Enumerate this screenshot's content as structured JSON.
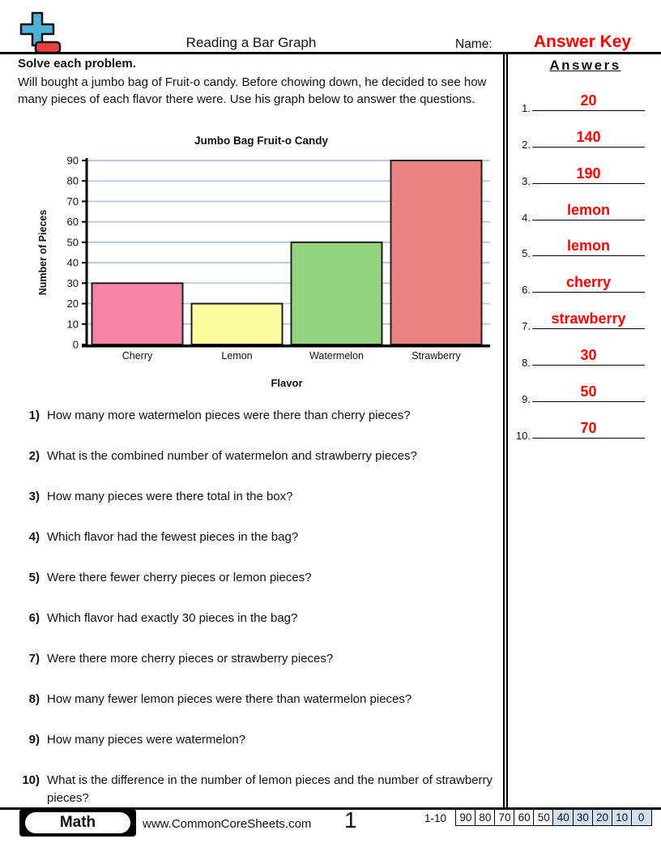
{
  "header": {
    "title": "Reading a Bar Graph",
    "name_label": "Name:",
    "name_value": "Answer Key"
  },
  "instructions": {
    "heading": "Solve each problem.",
    "body": "Will bought a jumbo bag of Fruit-o candy. Before chowing down, he decided to see how many pieces of each flavor there were. Use his graph below to answer the questions."
  },
  "chart_data": {
    "type": "bar",
    "title": "Jumbo Bag Fruit-o Candy",
    "categories": [
      "Cherry",
      "Lemon",
      "Watermelon",
      "Strawberry"
    ],
    "values": [
      30,
      20,
      50,
      90
    ],
    "bar_colors": [
      "#f883a4",
      "#fbfb9d",
      "#92d37e",
      "#ec8383"
    ],
    "xlabel": "Flavor",
    "ylabel": "Number of Pieces",
    "ylim": [
      0,
      90
    ],
    "ytick_step": 10,
    "grid": true,
    "gridline_color": "#a9c6e2",
    "legend": "none"
  },
  "questions": [
    {
      "num": "1)",
      "text": "How many more watermelon pieces were there than cherry pieces?"
    },
    {
      "num": "2)",
      "text": "What is the combined number of watermelon and strawberry pieces?"
    },
    {
      "num": "3)",
      "text": "How many pieces were there total in the box?"
    },
    {
      "num": "4)",
      "text": "Which flavor had the fewest pieces in the bag?"
    },
    {
      "num": "5)",
      "text": "Were there fewer cherry pieces or lemon pieces?"
    },
    {
      "num": "6)",
      "text": "Which flavor had exactly 30 pieces in the bag?"
    },
    {
      "num": "7)",
      "text": "Were there more cherry pieces or strawberry pieces?"
    },
    {
      "num": "8)",
      "text": "How many fewer lemon pieces were there than watermelon pieces?"
    },
    {
      "num": "9)",
      "text": "How many pieces were watermelon?"
    },
    {
      "num": "10)",
      "text": "What is the difference in the number of lemon pieces and the number of strawberry pieces?"
    }
  ],
  "answers": {
    "heading": "Answers",
    "color": "#ff0000",
    "items": [
      {
        "num": "1.",
        "value": "20"
      },
      {
        "num": "2.",
        "value": "140"
      },
      {
        "num": "3.",
        "value": "190"
      },
      {
        "num": "4.",
        "value": "lemon"
      },
      {
        "num": "5.",
        "value": "lemon"
      },
      {
        "num": "6.",
        "value": "cherry"
      },
      {
        "num": "7.",
        "value": "strawberry"
      },
      {
        "num": "8.",
        "value": "30"
      },
      {
        "num": "9.",
        "value": "50"
      },
      {
        "num": "10.",
        "value": "70"
      }
    ]
  },
  "footer": {
    "subject": "Math",
    "website": "www.CommonCoreSheets.com",
    "page_number": "1",
    "score_label": "1-10",
    "score_cells": [
      "90",
      "80",
      "70",
      "60",
      "50",
      "40",
      "30",
      "20",
      "10",
      "0"
    ],
    "score_highlight_from": 5
  },
  "logo_colors": {
    "plus_blue": "#4cb2d9",
    "minus_red": "#e8423e"
  }
}
